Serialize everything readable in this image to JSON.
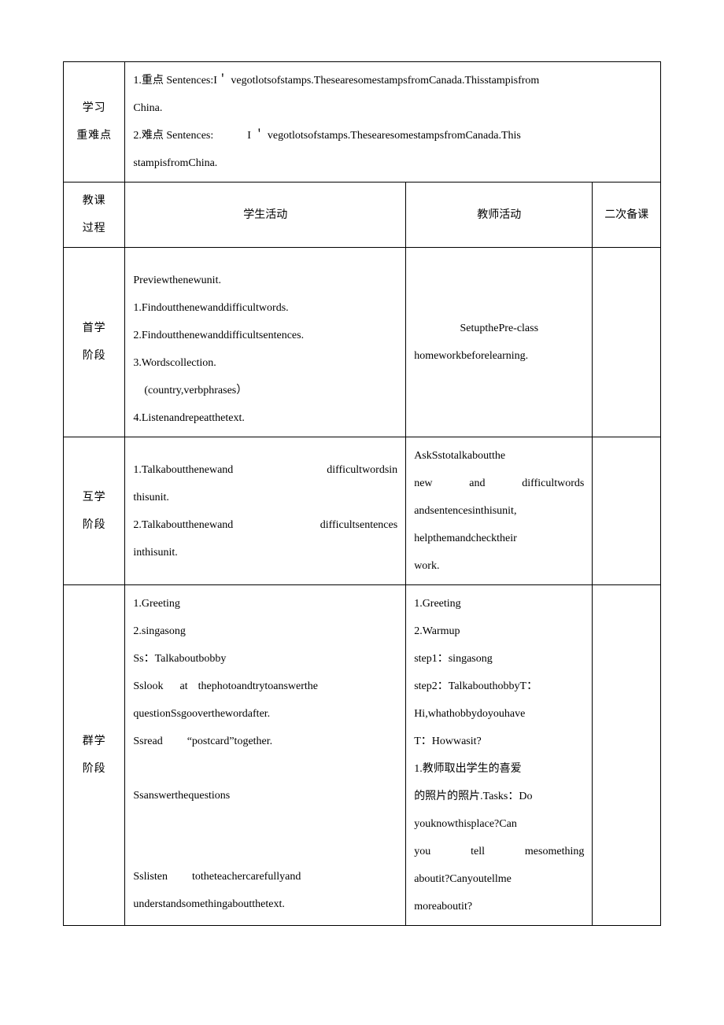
{
  "rowLabels": {
    "learnPoints": "学习\n重难点",
    "teachProcess": "教课\n过程",
    "stage1": "首学\n阶段",
    "stage2": "互学\n阶段",
    "stage3": "群学\n阶段"
  },
  "learnPoints": {
    "line1": "1.重点 Sentences:I＇ vegotlotsofstamps.ThesearesomestampsfromCanada.Thisstampisfrom",
    "line2": "China.",
    "line3a": "2.难点 Sentences:",
    "line3b": "I ＇ vegotlotsofstamps.ThesearesomestampsfromCanada.This",
    "line4": "stampisfromChina."
  },
  "headers": {
    "student": "学生活动",
    "teacher": "教师活动",
    "bk": "二次备课"
  },
  "stage1": {
    "student": {
      "l1": "Previewthenewunit.",
      "l2": "1.Findoutthenewanddifficultwords.",
      "l3": "2.Findoutthenewanddifficultsentences.",
      "l4": "3.Wordscollection.",
      "l5": "(country,verbphrases）",
      "l6": "4.Listenandrepeatthetext."
    },
    "teacher": {
      "l1": "SetupthePre-class",
      "l2": "homeworkbeforelearning."
    }
  },
  "stage2": {
    "student": {
      "l1a": "1.Talkaboutthenewand",
      "l1b": "difficultwordsin",
      "l2": "thisunit.",
      "l3a": "2.Talkaboutthenewand",
      "l3b": "difficultsentences",
      "l4": "inthisunit."
    },
    "teacher": {
      "l1": "AskSstotalkaboutthe",
      "l2a": "new",
      "l2b": "and",
      "l2c": "difficultwords",
      "l3": "andsentencesinthisunit,",
      "l4": "helpthemandchecktheir",
      "l5": "work."
    }
  },
  "stage3": {
    "student": {
      "l1": "1.Greeting",
      "l2": "2.singasong",
      "l3": "Ss：Talkaboutbobby",
      "l4a": "Sslook",
      "l4b": "at",
      "l4c": "thephotoandtrytoanswerthe",
      "l5": "questionSsgooverthewordafter.",
      "l6a": "Ssread",
      "l6b": "“postcard”together.",
      "l7": "Ssanswerthequestions",
      "l8a": "Sslisten",
      "l8b": "totheteachercarefullyand",
      "l9": "understandsomethingaboutthetext."
    },
    "teacher": {
      "l1": "1.Greeting",
      "l2": "2.Warmup",
      "l3": "step1：singasong",
      "l4": "step2：TalkabouthobbyT：",
      "l5": "Hi,whathobbydoyouhave",
      "l6": "T：Howwasit?",
      "l7": " 1.教师取出学生的喜爱",
      "l8": "的照片的照片.Tasks：Do",
      "l9": "youknowthisplace?Can",
      "l10a": "you",
      "l10b": "tell",
      "l10c": "mesomething",
      "l11": "aboutit?Canyoutellme",
      "l12": "moreaboutit?"
    }
  }
}
